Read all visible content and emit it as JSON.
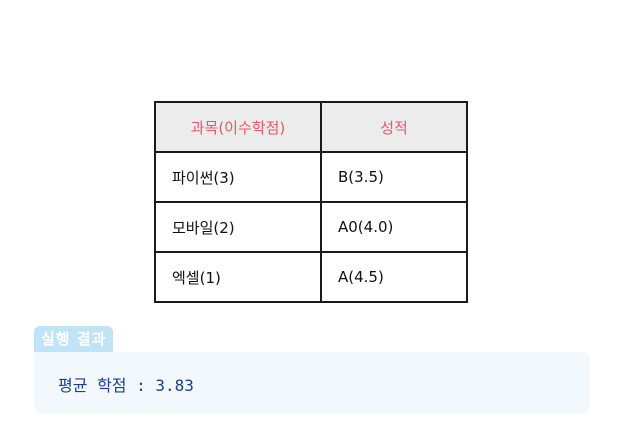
{
  "table": {
    "headers": [
      "과목(이수학점)",
      "성적"
    ],
    "rows": [
      {
        "subject": "파이썬(3)",
        "grade": "B(3.5)"
      },
      {
        "subject": "모바일(2)",
        "grade": "A0(4.0)"
      },
      {
        "subject": "엑셀(1)",
        "grade": "A(4.5)"
      }
    ]
  },
  "result": {
    "label": "실행 결과",
    "output": "평균 학점 : 3.83"
  },
  "colors": {
    "header_text": "#e8566a",
    "header_bg": "#ececec",
    "badge_bg": "#bfe3f7",
    "result_bg": "#f3f8fc",
    "result_text": "#1d3f8a"
  }
}
